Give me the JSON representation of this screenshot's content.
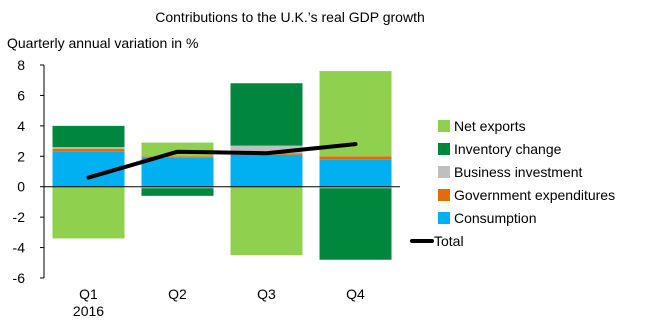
{
  "chart_data": {
    "type": "bar",
    "title": "Contributions to the U.K.’s real GDP growth",
    "subtitle": "Quarterly annual variation in %",
    "categories": [
      "Q1",
      "Q2",
      "Q3",
      "Q4"
    ],
    "category_sublabels": [
      "2016",
      "",
      "",
      ""
    ],
    "ylim": [
      -6,
      8
    ],
    "yticks": [
      "8",
      "6",
      "4",
      "2",
      "0",
      "-2",
      "-4",
      "-6"
    ],
    "ytick_values": [
      8,
      6,
      4,
      2,
      0,
      -2,
      -4,
      -6
    ],
    "stacked": true,
    "series": [
      {
        "name": "Consumption",
        "color": "#00b0f0",
        "values": [
          2.3,
          1.9,
          2.1,
          1.8
        ]
      },
      {
        "name": "Government expenditures",
        "color": "#e36c09",
        "values": [
          0.2,
          0.1,
          0.1,
          0.2
        ]
      },
      {
        "name": "Business investment",
        "color": "#bfbfbf",
        "values": [
          0.1,
          -0.1,
          0.5,
          -0.1
        ]
      },
      {
        "name": "Inventory change",
        "color": "#00873e",
        "values": [
          1.4,
          -0.5,
          4.1,
          -4.7
        ]
      },
      {
        "name": "Net exports",
        "color": "#8fd14f",
        "values": [
          -3.4,
          0.9,
          -4.5,
          5.6
        ]
      }
    ],
    "line_series": {
      "name": "Total",
      "color": "#000000",
      "values": [
        0.6,
        2.3,
        2.2,
        2.8
      ]
    },
    "legend_order": [
      "Net exports",
      "Inventory change",
      "Business investment",
      "Government expenditures",
      "Consumption",
      "Total"
    ],
    "legend_position": "right",
    "grid": false
  }
}
